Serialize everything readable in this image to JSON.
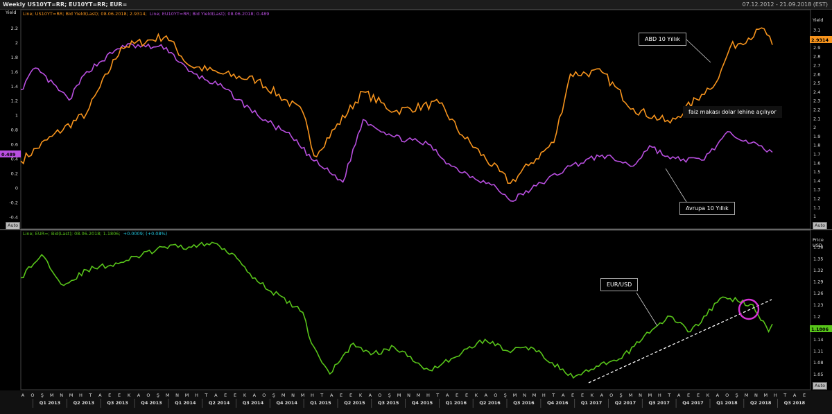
{
  "header": {
    "title": "Weekly US10YT=RR; EU10YT=RR; EUR=",
    "range": "07.12.2012 - 21.09.2018 (EST)"
  },
  "top_panel": {
    "legend_us_prefix": "Line; US10YT=RR; Bid Yield(Last); 08.06.2018; 2.9314;",
    "legend_eu": "Line; EU10YT=RR; Bid Yield(Last); 08.06.2018; 0.489",
    "left_axis_label": "Yield",
    "right_axis_label": "Yield",
    "left_ticks": [
      "2.2",
      "2",
      "1.8",
      "1.6",
      "1.4",
      "1.2",
      "1",
      "0.8",
      "0.6",
      "0.4",
      "0.2",
      "0",
      "-0.2",
      "-0.4"
    ],
    "right_ticks": [
      "3.1",
      "3",
      "2.9",
      "2.8",
      "2.7",
      "2.6",
      "2.5",
      "2.4",
      "2.3",
      "2.2",
      "2.1",
      "2",
      "1.9",
      "1.8",
      "1.7",
      "1.6",
      "1.5",
      "1.4",
      "1.3",
      "1.2",
      "1.1",
      "1"
    ],
    "last_us": "2.9314",
    "last_eu": "0.489",
    "annotation_us": "ABD 10 Yıllık",
    "annotation_spread": "faiz makası dolar lehine açılıyor",
    "annotation_eu": "Avrupa 10 Yıllık",
    "auto_label": "Auto",
    "colors": {
      "us": "#f7941d",
      "eu": "#b94fe0"
    }
  },
  "bottom_panel": {
    "legend_prefix": "Line; EUR=; Bid(Last); 08.06.2018; 1.1806;",
    "legend_change": "+0.0009; (+0.08%)",
    "axis_label_top": "Price",
    "axis_label_unit": "USD",
    "right_ticks": [
      "1.38",
      "1.35",
      "1.32",
      "1.29",
      "1.26",
      "1.23",
      "1.2",
      "1.17",
      "1.14",
      "1.11",
      "1.08",
      "1.05"
    ],
    "last_value": "1.1806",
    "annotation": "EUR/USD",
    "auto_label": "Auto",
    "colors": {
      "eurusd": "#58c51a",
      "trend": "#ffffff",
      "circle": "#d633d6"
    }
  },
  "x_axis": {
    "month_letters": [
      "A",
      "O",
      "Ş",
      "M",
      "N",
      "M",
      "H",
      "T",
      "A",
      "E",
      "E",
      "K",
      "A",
      "O",
      "Ş",
      "M",
      "N",
      "M",
      "H",
      "T",
      "A",
      "E",
      "E",
      "K",
      "A",
      "O",
      "Ş",
      "M",
      "N",
      "M",
      "H",
      "T",
      "A",
      "E",
      "E",
      "K",
      "A",
      "O",
      "Ş",
      "M",
      "N",
      "M",
      "H",
      "T",
      "A",
      "E",
      "E",
      "K",
      "A",
      "O",
      "Ş",
      "M",
      "N",
      "M",
      "H",
      "T",
      "A",
      "E",
      "E",
      "K",
      "A",
      "O",
      "Ş",
      "M",
      "N",
      "M",
      "H",
      "T",
      "A",
      "E",
      "E",
      "K",
      "A",
      "O",
      "Ş",
      "M",
      "N",
      "M",
      "H",
      "T",
      "A",
      "E"
    ],
    "quarters": [
      "Q1 2013",
      "Q2 2013",
      "Q3 2013",
      "Q4 2013",
      "Q1 2014",
      "Q2 2014",
      "Q3 2014",
      "Q4 2014",
      "Q1 2015",
      "Q2 2015",
      "Q3 2015",
      "Q4 2015",
      "Q1 2016",
      "Q2 2016",
      "Q3 2016",
      "Q4 2016",
      "Q1 2017",
      "Q2 2017",
      "Q3 2017",
      "Q4 2017",
      "Q1 2018",
      "Q2 2018",
      "Q3 2018"
    ]
  },
  "chart_data": [
    {
      "type": "line",
      "title": "",
      "ylabel": "Yield",
      "x_range": [
        "2012-12-07",
        "2018-06-08"
      ],
      "series": [
        {
          "name": "US10YT=RR",
          "axis": "right",
          "ylim": [
            0.95,
            3.2
          ],
          "x": [
            "2012-12-07",
            "2013-03-01",
            "2013-06-01",
            "2013-09-01",
            "2013-12-31",
            "2014-03-01",
            "2014-06-01",
            "2014-09-01",
            "2014-12-31",
            "2015-01-30",
            "2015-06-10",
            "2015-09-01",
            "2015-12-31",
            "2016-03-01",
            "2016-07-08",
            "2016-09-01",
            "2016-11-01",
            "2016-12-15",
            "2017-03-10",
            "2017-06-01",
            "2017-09-08",
            "2017-12-01",
            "2018-01-15",
            "2018-02-15",
            "2018-05-17",
            "2018-06-08"
          ],
          "values": [
            1.62,
            1.9,
            2.16,
            2.9,
            3.03,
            2.7,
            2.6,
            2.53,
            2.17,
            1.68,
            2.4,
            2.18,
            2.27,
            1.91,
            1.37,
            1.6,
            1.83,
            2.6,
            2.62,
            2.21,
            2.05,
            2.37,
            2.55,
            2.9,
            3.11,
            2.93
          ]
        },
        {
          "name": "EU10YT=RR",
          "axis": "left",
          "ylim": [
            -0.45,
            2.3
          ],
          "x": [
            "2012-12-07",
            "2013-01-15",
            "2013-04-15",
            "2013-06-01",
            "2013-09-05",
            "2013-12-31",
            "2014-03-01",
            "2014-06-01",
            "2014-09-01",
            "2014-12-01",
            "2015-01-30",
            "2015-04-17",
            "2015-06-10",
            "2015-09-01",
            "2015-12-01",
            "2016-02-01",
            "2016-06-01",
            "2016-07-08",
            "2016-09-01",
            "2016-12-15",
            "2017-03-10",
            "2017-06-01",
            "2017-07-15",
            "2017-09-08",
            "2017-12-01",
            "2018-02-15",
            "2018-05-17",
            "2018-06-08"
          ],
          "values": [
            1.35,
            1.65,
            1.21,
            1.6,
            1.96,
            1.93,
            1.6,
            1.38,
            1.0,
            0.7,
            0.37,
            0.08,
            0.94,
            0.7,
            0.6,
            0.3,
            0.0,
            -0.18,
            -0.02,
            0.3,
            0.45,
            0.3,
            0.58,
            0.4,
            0.38,
            0.77,
            0.53,
            0.49
          ]
        }
      ]
    },
    {
      "type": "line",
      "title": "",
      "ylabel": "Price USD",
      "ylim": [
        1.02,
        1.4
      ],
      "x_range": [
        "2012-12-07",
        "2018-06-08"
      ],
      "series": [
        {
          "name": "EUR=",
          "x": [
            "2012-12-07",
            "2013-02-01",
            "2013-04-01",
            "2013-06-01",
            "2013-09-01",
            "2013-12-27",
            "2014-03-01",
            "2014-05-09",
            "2014-07-01",
            "2014-09-01",
            "2014-12-31",
            "2015-01-23",
            "2015-03-13",
            "2015-05-15",
            "2015-07-01",
            "2015-09-01",
            "2015-12-04",
            "2016-02-01",
            "2016-05-01",
            "2016-07-01",
            "2016-09-01",
            "2016-12-23",
            "2017-03-01",
            "2017-05-01",
            "2017-07-01",
            "2017-09-08",
            "2017-11-01",
            "2018-01-26",
            "2018-04-17",
            "2018-05-29",
            "2018-06-08"
          ],
          "values": [
            1.3,
            1.36,
            1.28,
            1.32,
            1.34,
            1.38,
            1.38,
            1.39,
            1.36,
            1.29,
            1.21,
            1.13,
            1.05,
            1.13,
            1.1,
            1.12,
            1.06,
            1.09,
            1.14,
            1.11,
            1.12,
            1.04,
            1.07,
            1.09,
            1.15,
            1.2,
            1.16,
            1.25,
            1.23,
            1.16,
            1.18
          ]
        }
      ]
    }
  ]
}
